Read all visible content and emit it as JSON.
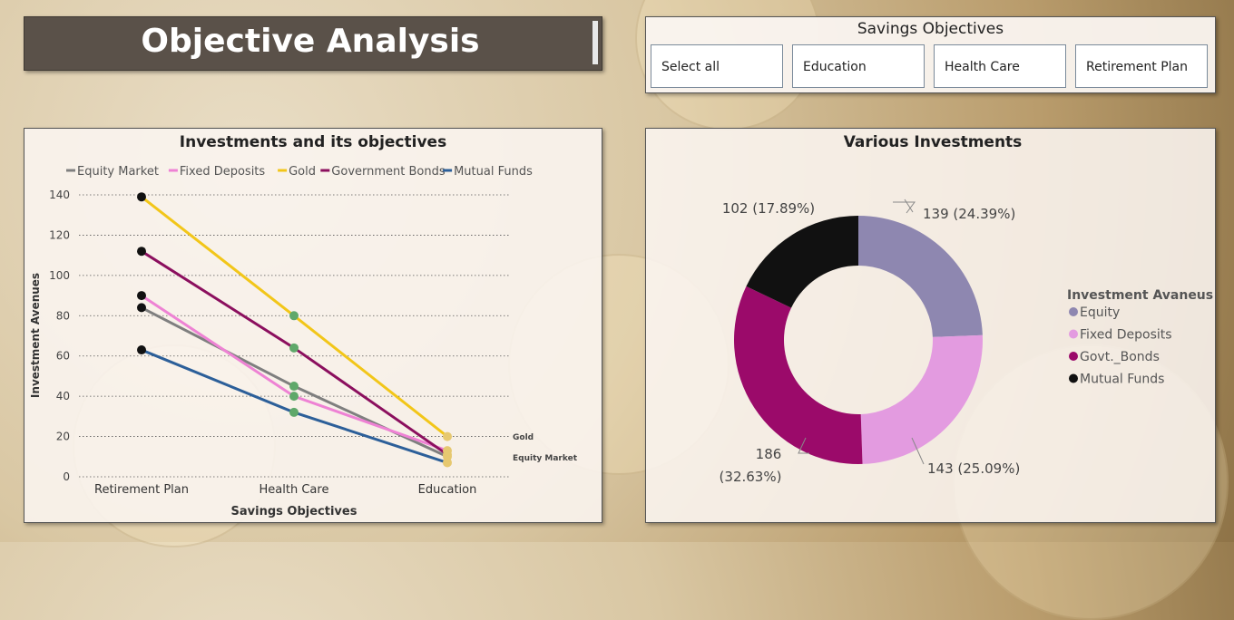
{
  "header": {
    "title": "Objective Analysis"
  },
  "slicer": {
    "title": "Savings Objectives",
    "options": [
      "Select all",
      "Education",
      "Health Care",
      "Retirement Plan"
    ]
  },
  "chart_data": [
    {
      "type": "line",
      "title": "Investments and its objectives",
      "xlabel": "Savings Objectives",
      "ylabel": "Investment Avenues",
      "categories": [
        "Retirement Plan",
        "Health Care",
        "Education"
      ],
      "ylim": [
        0,
        140
      ],
      "yticks": [
        0,
        20,
        40,
        60,
        80,
        100,
        120,
        140
      ],
      "grid": true,
      "legend_position": "top",
      "series": [
        {
          "name": "Equity Market",
          "color": "#7f7f7f",
          "values": [
            84,
            45,
            10
          ]
        },
        {
          "name": "Fixed Deposits",
          "color": "#ee82d4",
          "values": [
            90,
            40,
            13
          ]
        },
        {
          "name": "Gold",
          "color": "#f2c619",
          "values": [
            139,
            80,
            20
          ]
        },
        {
          "name": "Government Bonds",
          "color": "#8b0f5e",
          "values": [
            112,
            64,
            11
          ]
        },
        {
          "name": "Mutual Funds",
          "color": "#2c5f99",
          "values": [
            63,
            32,
            7
          ]
        }
      ],
      "marker_colors": [
        "#111111",
        "#5fa86a",
        "#e6c870"
      ],
      "end_labels": [
        "Gold",
        "Equity Market"
      ]
    },
    {
      "type": "pie",
      "title": "Various Investments",
      "legend_title": "Investment Avaneus",
      "legend_position": "right",
      "slices": [
        {
          "name": "Equity",
          "value": 139,
          "label": "139 (24.39%)",
          "color": "#8e87b0"
        },
        {
          "name": "Fixed Deposits",
          "value": 143,
          "label": "143 (25.09%)",
          "color": "#e39be0"
        },
        {
          "name": "Govt._Bonds",
          "value": 186,
          "label_line1": "186",
          "label_line2": "(32.63%)",
          "color": "#9b0a6a"
        },
        {
          "name": "Mutual Funds",
          "value": 102,
          "label": "102 (17.89%)",
          "color": "#111111"
        }
      ]
    }
  ]
}
